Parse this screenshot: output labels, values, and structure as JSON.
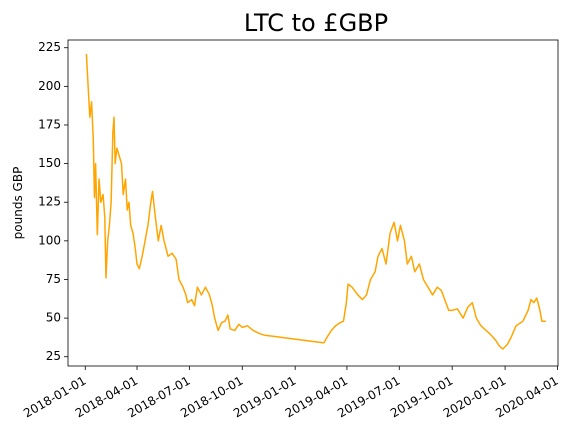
{
  "chart_data": {
    "type": "line",
    "title": "LTC to £GBP",
    "y_label": "pounds GBP",
    "x": [
      "2018-01-03",
      "2018-01-06",
      "2018-01-09",
      "2018-01-12",
      "2018-01-15",
      "2018-01-17",
      "2018-01-19",
      "2018-01-22",
      "2018-01-25",
      "2018-01-28",
      "2018-02-01",
      "2018-02-04",
      "2018-02-06",
      "2018-02-09",
      "2018-02-12",
      "2018-02-15",
      "2018-02-18",
      "2018-02-20",
      "2018-02-22",
      "2018-02-25",
      "2018-03-01",
      "2018-03-05",
      "2018-03-08",
      "2018-03-12",
      "2018-03-15",
      "2018-03-18",
      "2018-03-21",
      "2018-03-25",
      "2018-03-29",
      "2018-04-01",
      "2018-04-05",
      "2018-04-10",
      "2018-04-15",
      "2018-04-20",
      "2018-04-25",
      "2018-04-28",
      "2018-05-03",
      "2018-05-08",
      "2018-05-13",
      "2018-05-18",
      "2018-05-25",
      "2018-06-01",
      "2018-06-08",
      "2018-06-13",
      "2018-06-20",
      "2018-06-25",
      "2018-06-28",
      "2018-07-05",
      "2018-07-10",
      "2018-07-15",
      "2018-07-22",
      "2018-07-29",
      "2018-08-05",
      "2018-08-10",
      "2018-08-14",
      "2018-08-20",
      "2018-08-26",
      "2018-09-01",
      "2018-09-06",
      "2018-09-10",
      "2018-09-18",
      "2018-09-25",
      "2018-10-01",
      "2018-10-10",
      "2018-10-20",
      "2018-10-31",
      "2018-11-08",
      "2019-02-20",
      "2019-02-26",
      "2019-03-05",
      "2019-03-12",
      "2019-03-20",
      "2019-03-26",
      "2019-03-31",
      "2019-04-03",
      "2019-04-10",
      "2019-04-20",
      "2019-04-28",
      "2019-05-05",
      "2019-05-12",
      "2019-05-20",
      "2019-05-25",
      "2019-06-01",
      "2019-06-08",
      "2019-06-15",
      "2019-06-22",
      "2019-06-28",
      "2019-07-03",
      "2019-07-10",
      "2019-07-15",
      "2019-07-22",
      "2019-07-28",
      "2019-08-05",
      "2019-08-12",
      "2019-08-20",
      "2019-08-28",
      "2019-09-05",
      "2019-09-12",
      "2019-09-20",
      "2019-09-25",
      "2019-10-01",
      "2019-10-10",
      "2019-10-20",
      "2019-10-28",
      "2019-11-05",
      "2019-11-12",
      "2019-11-20",
      "2019-12-05",
      "2019-12-15",
      "2019-12-22",
      "2019-12-28",
      "2020-01-05",
      "2020-01-12",
      "2020-01-20",
      "2020-02-01",
      "2020-02-10",
      "2020-02-15",
      "2020-02-20",
      "2020-02-25",
      "2020-03-01",
      "2020-03-05",
      "2020-03-12"
    ],
    "series": [
      {
        "name": "LTC",
        "color": "#ffa500",
        "values": [
          221,
          200,
          180,
          190,
          165,
          128,
          150,
          104,
          140,
          125,
          130,
          115,
          76,
          100,
          110,
          125,
          170,
          180,
          150,
          160,
          155,
          150,
          130,
          140,
          120,
          125,
          110,
          105,
          95,
          85,
          82,
          90,
          100,
          110,
          125,
          132,
          115,
          100,
          110,
          100,
          90,
          92,
          88,
          75,
          70,
          65,
          60,
          62,
          58,
          70,
          65,
          70,
          65,
          58,
          50,
          42,
          47,
          48,
          52,
          43,
          42,
          46,
          44,
          45,
          42,
          40,
          39,
          34,
          38,
          42,
          45,
          47,
          48,
          60,
          72,
          70,
          65,
          62,
          65,
          75,
          80,
          90,
          95,
          85,
          105,
          112,
          100,
          110,
          100,
          85,
          90,
          80,
          85,
          75,
          70,
          65,
          70,
          68,
          60,
          55,
          55,
          56,
          50,
          57,
          60,
          50,
          45,
          40,
          36,
          32,
          30,
          33,
          38,
          45,
          48,
          55,
          62,
          60,
          63,
          56,
          48,
          48
        ]
      }
    ],
    "xlim": [
      "2017-12-02",
      "2020-04-02"
    ],
    "xticks": [
      "2018-01-01",
      "2018-04-01",
      "2018-07-01",
      "2018-10-01",
      "2019-01-01",
      "2019-04-01",
      "2019-07-01",
      "2019-10-01",
      "2020-01-01",
      "2020-04-01"
    ],
    "ylim": [
      19,
      230
    ],
    "yticks": [
      25,
      50,
      75,
      100,
      125,
      150,
      175,
      200,
      225
    ]
  }
}
